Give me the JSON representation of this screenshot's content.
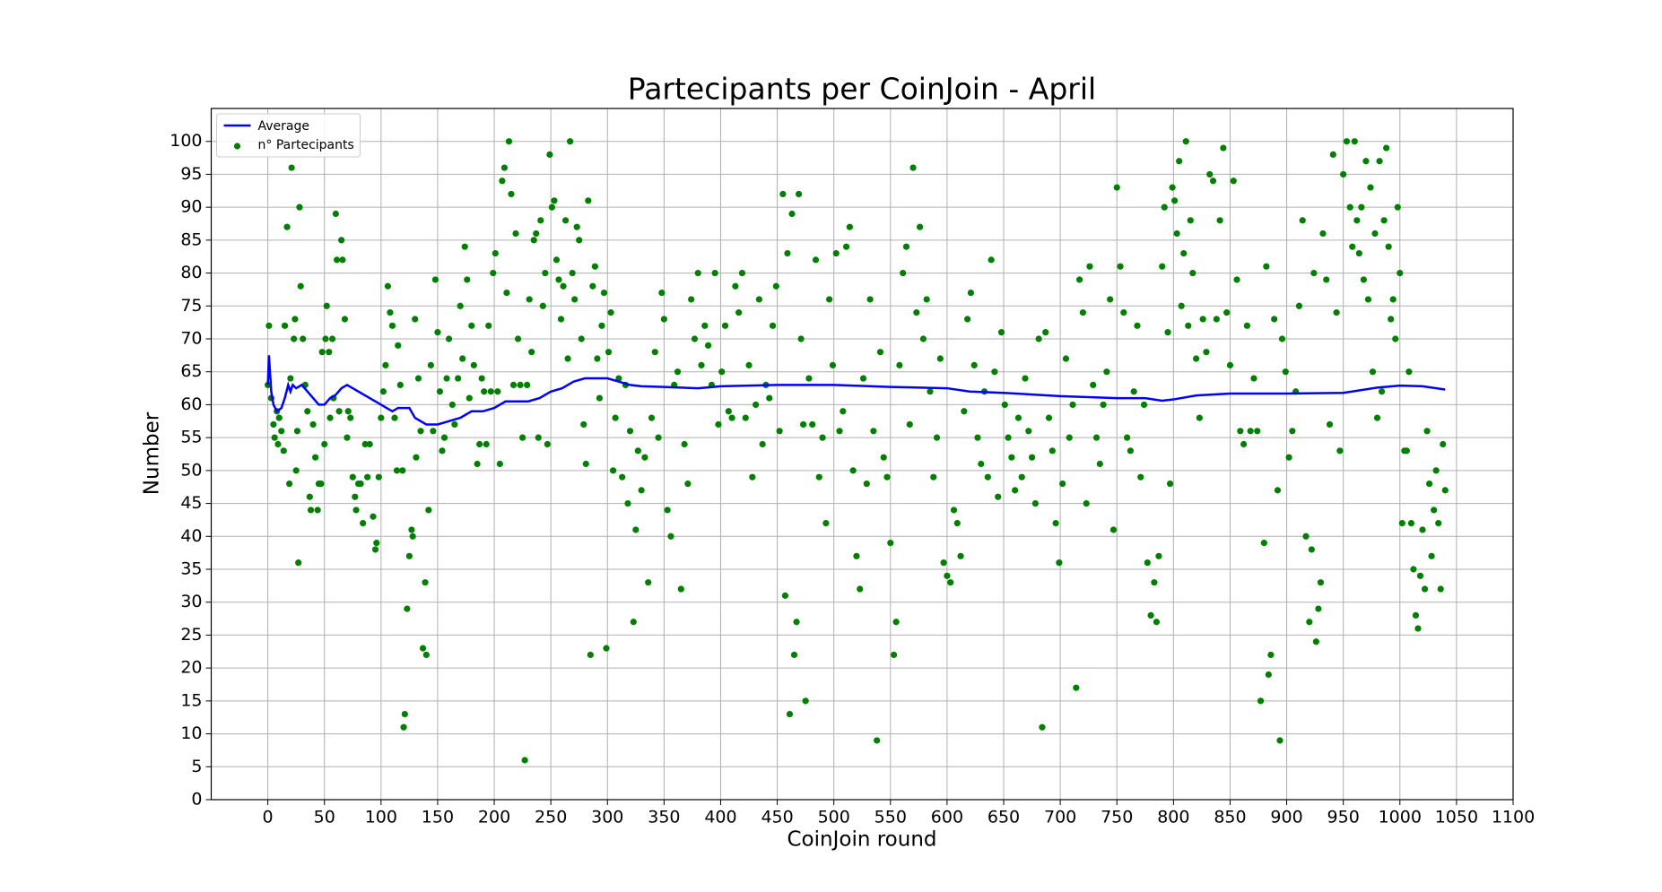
{
  "chart_data": {
    "type": "scatter",
    "title": "Partecipants per CoinJoin - April",
    "x_label": "CoinJoin round",
    "y_label": "Number",
    "xlim": [
      -50,
      1100
    ],
    "ylim": [
      0,
      105
    ],
    "xticks": [
      0,
      50,
      100,
      150,
      200,
      250,
      300,
      350,
      400,
      450,
      500,
      550,
      600,
      650,
      700,
      750,
      800,
      850,
      900,
      950,
      1000,
      1050,
      1100
    ],
    "yticks": [
      0,
      5,
      10,
      15,
      20,
      25,
      30,
      35,
      40,
      45,
      50,
      55,
      60,
      65,
      70,
      75,
      80,
      85,
      90,
      95,
      100
    ],
    "grid": true,
    "legend": "upper left",
    "series": [
      {
        "name": "Average",
        "type": "line",
        "color": "#0000ff",
        "x": [
          0,
          1,
          3,
          5,
          8,
          12,
          15,
          18,
          20,
          22,
          25,
          30,
          35,
          40,
          45,
          50,
          55,
          60,
          65,
          70,
          75,
          80,
          90,
          100,
          110,
          115,
          125,
          130,
          140,
          150,
          160,
          170,
          180,
          190,
          200,
          210,
          220,
          230,
          240,
          250,
          260,
          270,
          280,
          290,
          300,
          310,
          320,
          330,
          350,
          380,
          400,
          450,
          500,
          550,
          600,
          620,
          650,
          700,
          750,
          775,
          790,
          800,
          820,
          850,
          900,
          950,
          980,
          1000,
          1020,
          1040
        ],
        "values": [
          63,
          67.5,
          62,
          60,
          59,
          59.5,
          61,
          63,
          62,
          63,
          62.5,
          63,
          62,
          61,
          60,
          60,
          61,
          61.5,
          62.5,
          63,
          62.5,
          62,
          61,
          60,
          59,
          59.5,
          59.5,
          58,
          57,
          57,
          57.5,
          58,
          59,
          59,
          59.5,
          60.5,
          60.5,
          60.5,
          61,
          62,
          62.5,
          63.5,
          64,
          64,
          64,
          63.5,
          63,
          62.8,
          62.7,
          62.5,
          62.8,
          63,
          63,
          62.7,
          62.5,
          62,
          61.8,
          61.3,
          61,
          61,
          60.6,
          60.8,
          61.4,
          61.7,
          61.7,
          61.8,
          62.6,
          62.9,
          62.8,
          62.3
        ]
      },
      {
        "name": "n° Partecipants",
        "type": "scatter",
        "color": "#008000",
        "x": [
          0,
          1,
          3,
          5,
          6,
          8,
          9,
          10,
          12,
          14,
          15,
          17,
          19,
          20,
          21,
          23,
          24,
          25,
          26,
          27,
          28,
          29,
          31,
          33,
          35,
          37,
          38,
          40,
          42,
          44,
          45,
          47,
          48,
          50,
          51,
          52,
          54,
          55,
          57,
          58,
          60,
          61,
          63,
          65,
          66,
          68,
          70,
          71,
          73,
          75,
          77,
          78,
          80,
          82,
          84,
          86,
          88,
          90,
          93,
          95,
          96,
          98,
          100,
          102,
          104,
          106,
          108,
          110,
          112,
          114,
          115,
          117,
          119,
          120,
          121,
          123,
          125,
          127,
          128,
          130,
          131,
          133,
          135,
          137,
          139,
          140,
          142,
          144,
          146,
          148,
          150,
          152,
          154,
          156,
          158,
          160,
          163,
          165,
          168,
          170,
          172,
          174,
          176,
          178,
          180,
          182,
          185,
          187,
          189,
          191,
          193,
          195,
          197,
          199,
          201,
          203,
          205,
          207,
          209,
          211,
          213,
          215,
          217,
          219,
          221,
          223,
          225,
          227,
          229,
          231,
          233,
          235,
          237,
          239,
          241,
          243,
          245,
          247,
          249,
          251,
          253,
          255,
          257,
          259,
          261,
          263,
          265,
          267,
          269,
          271,
          273,
          275,
          277,
          279,
          281,
          283,
          285,
          287,
          289,
          291,
          293,
          295,
          297,
          299,
          301,
          303,
          305,
          307,
          310,
          313,
          316,
          318,
          320,
          323,
          325,
          327,
          330,
          333,
          336,
          339,
          342,
          345,
          348,
          350,
          353,
          356,
          359,
          362,
          365,
          368,
          371,
          374,
          377,
          380,
          383,
          386,
          389,
          392,
          395,
          398,
          401,
          404,
          407,
          410,
          413,
          416,
          419,
          422,
          425,
          428,
          431,
          434,
          437,
          440,
          443,
          446,
          449,
          452,
          455,
          457,
          459,
          461,
          463,
          465,
          467,
          469,
          471,
          473,
          475,
          478,
          481,
          484,
          487,
          490,
          493,
          496,
          499,
          502,
          505,
          508,
          511,
          514,
          517,
          520,
          523,
          526,
          529,
          532,
          535,
          538,
          541,
          544,
          547,
          550,
          553,
          555,
          558,
          561,
          564,
          567,
          570,
          573,
          576,
          579,
          582,
          585,
          588,
          591,
          594,
          597,
          600,
          603,
          606,
          609,
          612,
          615,
          618,
          621,
          624,
          627,
          630,
          633,
          636,
          639,
          642,
          645,
          648,
          651,
          654,
          657,
          660,
          663,
          666,
          669,
          672,
          675,
          678,
          681,
          684,
          687,
          690,
          693,
          696,
          699,
          702,
          705,
          708,
          711,
          714,
          717,
          720,
          723,
          726,
          729,
          732,
          735,
          738,
          741,
          744,
          747,
          750,
          753,
          756,
          759,
          762,
          765,
          768,
          771,
          774,
          777,
          780,
          783,
          785,
          787,
          790,
          792,
          795,
          797,
          799,
          801,
          803,
          805,
          807,
          809,
          811,
          813,
          815,
          817,
          820,
          823,
          826,
          829,
          832,
          835,
          838,
          841,
          844,
          847,
          850,
          853,
          856,
          859,
          862,
          865,
          868,
          871,
          874,
          877,
          880,
          882,
          884,
          886,
          889,
          892,
          894,
          896,
          899,
          902,
          905,
          908,
          911,
          914,
          917,
          920,
          922,
          924,
          926,
          928,
          930,
          932,
          935,
          938,
          941,
          944,
          947,
          950,
          953,
          956,
          958,
          960,
          962,
          964,
          966,
          968,
          970,
          972,
          974,
          976,
          978,
          980,
          982,
          984,
          986,
          988,
          990,
          992,
          994,
          996,
          998,
          1000,
          1002,
          1004,
          1006,
          1008,
          1010,
          1012,
          1014,
          1016,
          1018,
          1020,
          1022,
          1024,
          1026,
          1028,
          1030,
          1032,
          1034,
          1036,
          1038,
          1040
        ],
        "values": [
          63,
          72,
          61,
          57,
          55,
          59,
          54,
          58,
          56,
          53,
          72,
          87,
          48,
          64,
          96,
          70,
          73,
          50,
          56,
          36,
          90,
          78,
          70,
          63,
          59,
          46,
          44,
          57,
          52,
          44,
          48,
          48,
          68,
          54,
          70,
          75,
          68,
          58,
          70,
          61,
          89,
          82,
          59,
          85,
          82,
          73,
          55,
          59,
          58,
          49,
          46,
          44,
          48,
          48,
          42,
          54,
          49,
          54,
          43,
          38,
          39,
          49,
          58,
          62,
          66,
          78,
          74,
          72,
          58,
          50,
          69,
          63,
          50,
          11,
          13,
          29,
          37,
          41,
          40,
          73,
          52,
          64,
          56,
          23,
          33,
          22,
          44,
          66,
          56,
          79,
          71,
          62,
          53,
          55,
          64,
          70,
          60,
          57,
          64,
          75,
          67,
          84,
          79,
          61,
          72,
          66,
          51,
          54,
          64,
          62,
          54,
          72,
          62,
          80,
          83,
          62,
          51,
          94,
          96,
          77,
          100,
          92,
          63,
          86,
          70,
          63,
          55,
          6,
          63,
          76,
          68,
          85,
          86,
          55,
          88,
          75,
          80,
          54,
          98,
          90,
          91,
          82,
          79,
          73,
          78,
          88,
          67,
          100,
          80,
          76,
          87,
          85,
          70,
          57,
          51,
          91,
          22,
          78,
          81,
          67,
          61,
          72,
          77,
          23,
          68,
          74,
          50,
          58,
          64,
          49,
          63,
          45,
          56,
          27,
          41,
          53,
          47,
          52,
          33,
          58,
          68,
          55,
          77,
          73,
          44,
          40,
          63,
          65,
          32,
          54,
          48,
          76,
          70,
          80,
          66,
          72,
          69,
          63,
          80,
          57,
          65,
          72,
          59,
          58,
          78,
          74,
          80,
          58,
          66,
          49,
          60,
          76,
          54,
          63,
          61,
          72,
          78,
          56,
          92,
          31,
          83,
          13,
          89,
          22,
          27,
          92,
          70,
          57,
          15,
          64,
          57,
          82,
          49,
          55,
          42,
          76,
          66,
          83,
          56,
          59,
          84,
          87,
          50,
          37,
          32,
          64,
          48,
          76,
          56,
          9,
          68,
          52,
          49,
          39,
          22,
          27,
          66,
          80,
          84,
          57,
          96,
          74,
          87,
          70,
          76,
          62,
          49,
          55,
          67,
          36,
          34,
          33,
          44,
          42,
          37,
          59,
          73,
          77,
          66,
          55,
          51,
          62,
          49,
          82,
          65,
          46,
          71,
          60,
          55,
          52,
          47,
          58,
          49,
          64,
          56,
          52,
          45,
          70,
          11,
          71,
          58,
          53,
          42,
          36,
          48,
          67,
          55,
          60,
          17,
          79,
          74,
          45,
          81,
          63,
          55,
          51,
          60,
          65,
          76,
          41,
          93,
          81,
          74,
          55,
          53,
          62,
          72,
          49,
          60,
          36,
          28,
          33,
          27,
          37,
          81,
          90,
          71,
          48,
          93,
          91,
          86,
          97,
          75,
          83,
          100,
          72,
          88,
          80,
          67,
          58,
          73,
          68,
          95,
          94,
          73,
          88,
          99,
          74,
          66,
          94,
          79,
          56,
          54,
          72,
          56,
          64,
          56,
          15,
          39,
          81,
          19,
          22,
          73,
          47,
          9,
          70,
          65,
          52,
          56,
          62,
          75,
          88,
          40,
          27,
          38,
          80,
          24,
          29,
          33,
          86,
          79,
          57,
          98,
          74,
          53,
          95,
          100,
          90,
          84,
          100,
          88,
          83,
          90,
          79,
          97,
          76,
          93,
          65,
          86,
          58,
          97,
          62,
          88,
          99,
          84,
          73,
          76,
          70,
          90,
          80,
          42,
          53,
          53,
          65,
          42,
          35,
          28,
          26,
          34,
          41,
          32,
          56,
          48,
          37,
          44,
          50,
          42,
          32,
          54,
          47
        ]
      }
    ]
  }
}
